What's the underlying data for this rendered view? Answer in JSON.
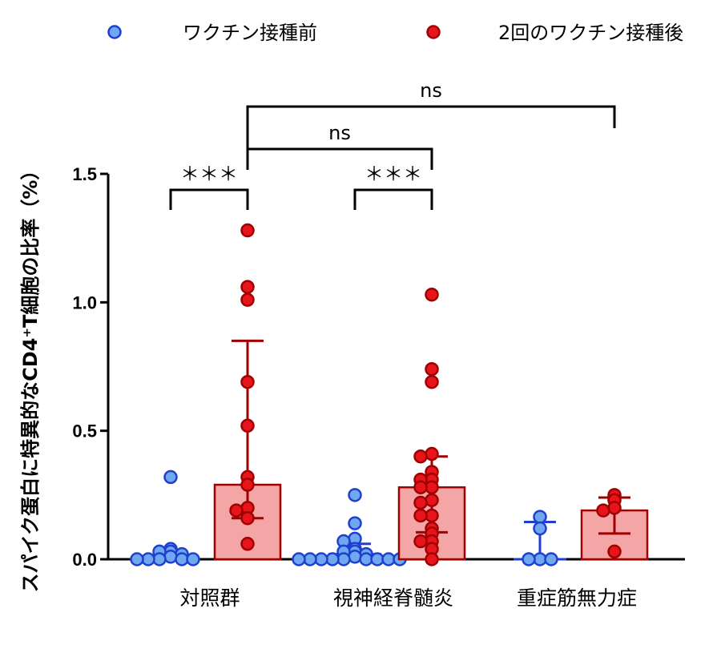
{
  "chart_data": {
    "type": "bar",
    "ylabel": "スパイク蛋白に特異的なCD4⁺T細胞の比率（%）",
    "ylim": [
      0,
      1.5
    ],
    "yticks": [
      "0.0",
      "0.5",
      "1.0",
      "1.5"
    ],
    "ytick_values": [
      0,
      0.5,
      1.0,
      1.5
    ],
    "categories": [
      "対照群",
      "視神経脊髄炎",
      "重症筋無力症"
    ],
    "legend": "top",
    "colors": {
      "pre_fill": "#6fa8f0",
      "pre_stroke": "#1f3fcf",
      "post_fill": "#e8141b",
      "post_stroke": "#a00000",
      "post_bar": "#f4a6a6"
    },
    "series": [
      {
        "name": "ワクチン接種前",
        "groups": [
          {
            "median": 0.01,
            "err_low": 0.0,
            "err_high": 0.03,
            "points": [
              0.32,
              0.04,
              0.03,
              0.03,
              0.02,
              0.01,
              0.0,
              0.0,
              0.0,
              0.0,
              0.0
            ]
          },
          {
            "median": 0.02,
            "err_low": 0.0,
            "err_high": 0.06,
            "points": [
              0.25,
              0.14,
              0.08,
              0.07,
              0.04,
              0.03,
              0.03,
              0.02,
              0.01,
              0.0,
              0.0,
              0.0,
              0.0,
              0.0,
              0.0,
              0.0,
              0.0,
              0.0
            ]
          },
          {
            "median": 0.0,
            "err_low": 0.0,
            "err_high": 0.145,
            "points": [
              0.0,
              0.165,
              0.12,
              0.0,
              0.0
            ]
          }
        ]
      },
      {
        "name": "2回のワクチン接種後",
        "groups": [
          {
            "median": 0.29,
            "err_low": 0.16,
            "err_high": 0.85,
            "points": [
              1.28,
              1.06,
              1.01,
              0.69,
              0.52,
              0.32,
              0.29,
              0.2,
              0.19,
              0.16,
              0.06
            ]
          },
          {
            "median": 0.28,
            "err_low": 0.105,
            "err_high": 0.4,
            "points": [
              1.03,
              0.74,
              0.69,
              0.41,
              0.4,
              0.34,
              0.31,
              0.31,
              0.28,
              0.28,
              0.23,
              0.22,
              0.17,
              0.17,
              0.12,
              0.1,
              0.07,
              0.07,
              0.04,
              0.0
            ]
          },
          {
            "median": 0.19,
            "err_low": 0.1,
            "err_high": 0.24,
            "points": [
              0.25,
              0.23,
              0.2,
              0.19,
              0.03
            ]
          }
        ]
      }
    ],
    "significance": [
      {
        "label": "＊＊＊",
        "group": "対照群"
      },
      {
        "label": "＊＊＊",
        "group": "視神経脊髄炎"
      },
      {
        "label": "ns",
        "compare": [
          "対照群",
          "視神経脊髄炎"
        ]
      },
      {
        "label": "ns",
        "compare": [
          "対照群",
          "重症筋無力症"
        ]
      }
    ]
  }
}
